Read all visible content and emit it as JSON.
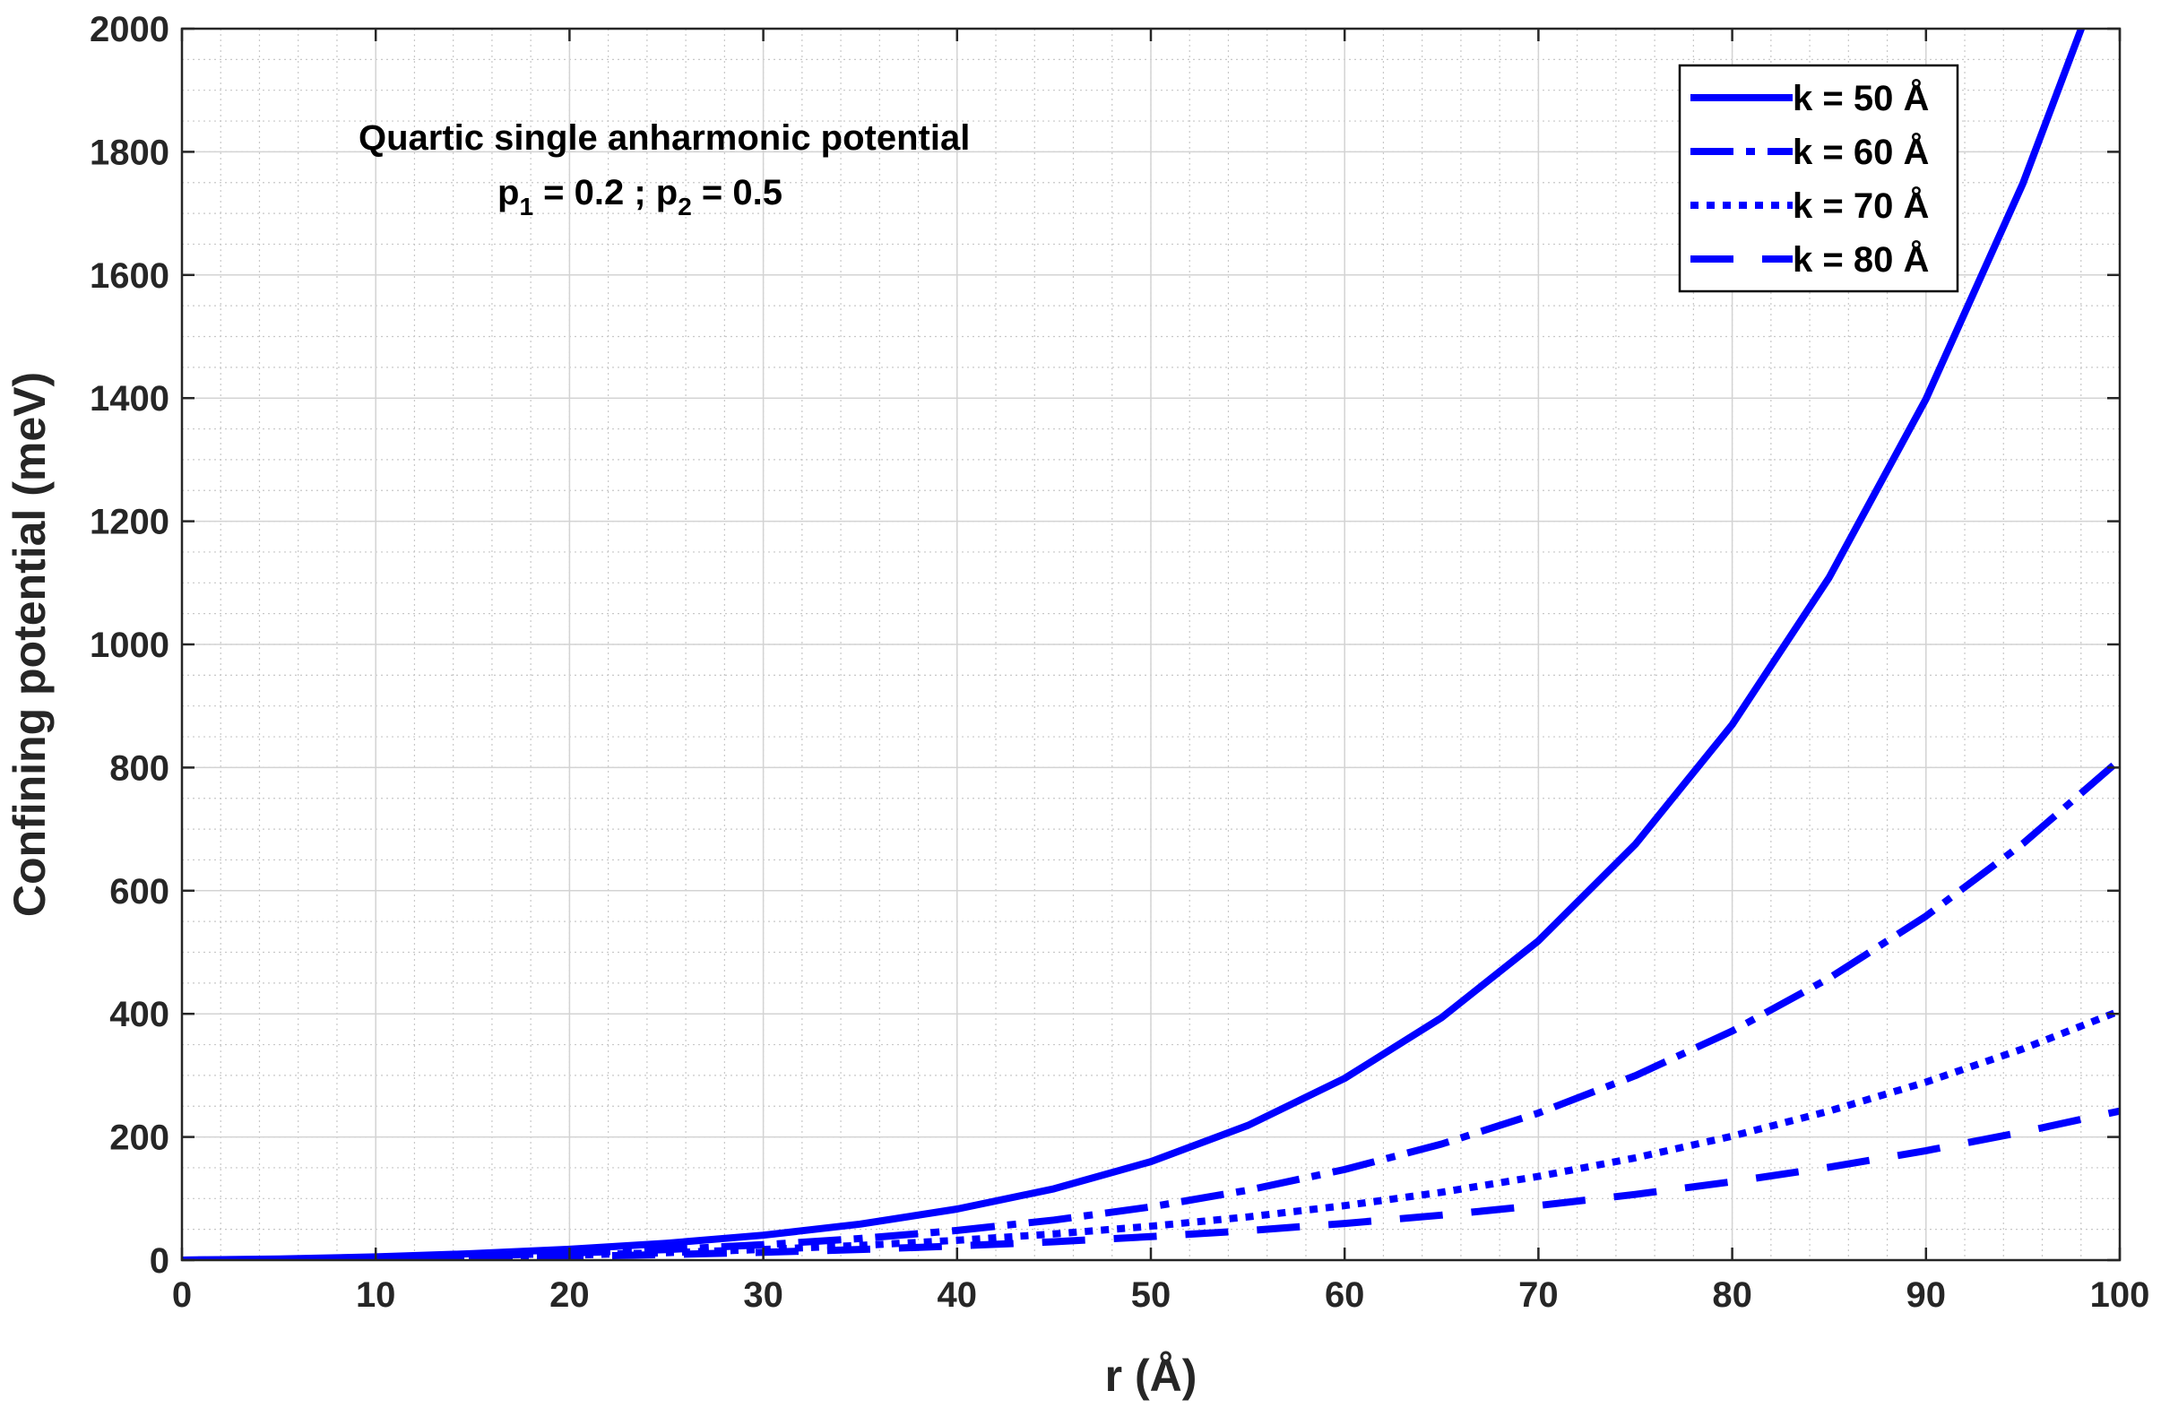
{
  "chart_data": {
    "type": "line",
    "xlabel": "r (Å)",
    "ylabel": "Confining potential (meV)",
    "xlim": [
      0,
      100
    ],
    "ylim": [
      0,
      2000
    ],
    "xticks": [
      0,
      10,
      20,
      30,
      40,
      50,
      60,
      70,
      80,
      90,
      100
    ],
    "yticks": [
      0,
      200,
      400,
      600,
      800,
      1000,
      1200,
      1400,
      1600,
      1800,
      2000
    ],
    "grid": true,
    "minor_grid": true,
    "legend_position": "top-right",
    "annotation": {
      "line1": "Quartic single anharmonic potential",
      "line2": {
        "p1_base": "p",
        "p1_sub": "1",
        "mid": " = 0.2 ; p",
        "p2_sub": "2",
        "end": " = 0.5"
      }
    },
    "x": [
      0,
      5,
      10,
      15,
      20,
      25,
      30,
      35,
      40,
      45,
      50,
      55,
      60,
      65,
      70,
      75,
      80,
      85,
      90,
      95,
      100
    ],
    "series": [
      {
        "name": "k = 50 Å",
        "style": "solid",
        "color": "#0000ff",
        "values": [
          0,
          1.8,
          5.2,
          10.5,
          17.6,
          27.3,
          40.5,
          58.5,
          82.9,
          115.8,
          160,
          218.6,
          295.2,
          393.7,
          518.6,
          675.3,
          869.7,
          1108.4,
          1398.6,
          1748.4,
          2166
        ]
      },
      {
        "name": "k = 60 Å",
        "style": "dashdot",
        "color": "#0000ff",
        "values": [
          0,
          1.2,
          3.5,
          6.9,
          11.4,
          17.2,
          25,
          35.1,
          48.2,
          65,
          86.5,
          113.5,
          147.1,
          188.5,
          238.8,
          299.5,
          372,
          457.9,
          558.7,
          676.4,
          812.5
        ]
      },
      {
        "name": "k = 70 Å",
        "style": "dotted",
        "color": "#0000ff",
        "values": [
          0,
          0.9,
          2.5,
          4.9,
          8.1,
          12.1,
          17.3,
          23.9,
          32.2,
          42.5,
          55,
          70.2,
          88.5,
          110.2,
          135.9,
          166.1,
          201.3,
          242.1,
          289.1,
          343.1,
          404.7
        ]
      },
      {
        "name": "k = 80 Å",
        "style": "dashed",
        "color": "#0000ff",
        "values": [
          0,
          0.6,
          1.9,
          3.6,
          6,
          9,
          12.7,
          17.3,
          23,
          29.9,
          38.1,
          47.9,
          59.5,
          73,
          88.6,
          106.7,
          127.4,
          151,
          177.8,
          208.1,
          242.2
        ]
      }
    ]
  }
}
